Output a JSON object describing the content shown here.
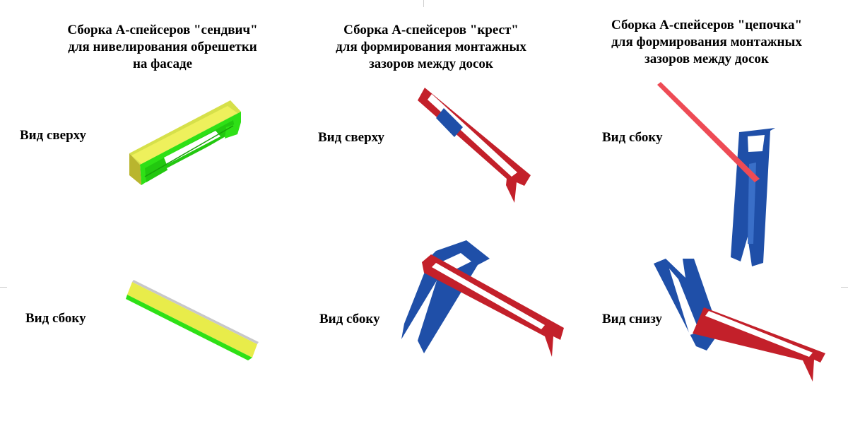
{
  "columns": [
    {
      "title_lines": [
        "Сборка А-спейсеров \"сендвич\"",
        "для нивелирования обрешетки",
        "на фасаде"
      ],
      "views": [
        "Вид сверху",
        "Вид сбоку"
      ]
    },
    {
      "title_lines": [
        "Сборка А-спейсеров \"крест\"",
        "для формирования монтажных",
        "зазоров между досок"
      ],
      "views": [
        "Вид сверху",
        "Вид сбоку"
      ]
    },
    {
      "title_lines": [
        "Сборка А-спейсеров \"цепочка\"",
        "для формирования монтажных",
        "зазоров между досок"
      ],
      "views": [
        "Вид сбоку",
        "Вид снизу"
      ]
    }
  ],
  "colors": {
    "green": "#2ee016",
    "yellow": "#e8ec4a",
    "red": "#c3202a",
    "blue": "#1f4fa8",
    "pink": "#ee4b55"
  }
}
